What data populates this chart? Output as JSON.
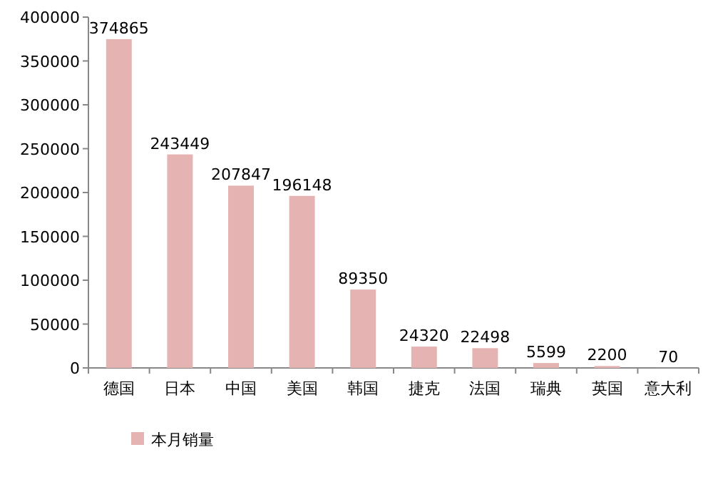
{
  "chart_data": {
    "type": "bar",
    "categories": [
      "德国",
      "日本",
      "中国",
      "美国",
      "韩国",
      "捷克",
      "法国",
      "瑞典",
      "英国",
      "意大利"
    ],
    "series": [
      {
        "name": "本月销量",
        "color": "#e6b3b3",
        "values": [
          374865,
          243449,
          207847,
          196148,
          89350,
          24320,
          22498,
          5599,
          2200,
          70
        ]
      }
    ],
    "ylim": [
      0,
      400000
    ],
    "yticks": [
      0,
      50000,
      100000,
      150000,
      200000,
      250000,
      300000,
      350000,
      400000
    ],
    "data_labels": true,
    "legend": "bottom"
  }
}
